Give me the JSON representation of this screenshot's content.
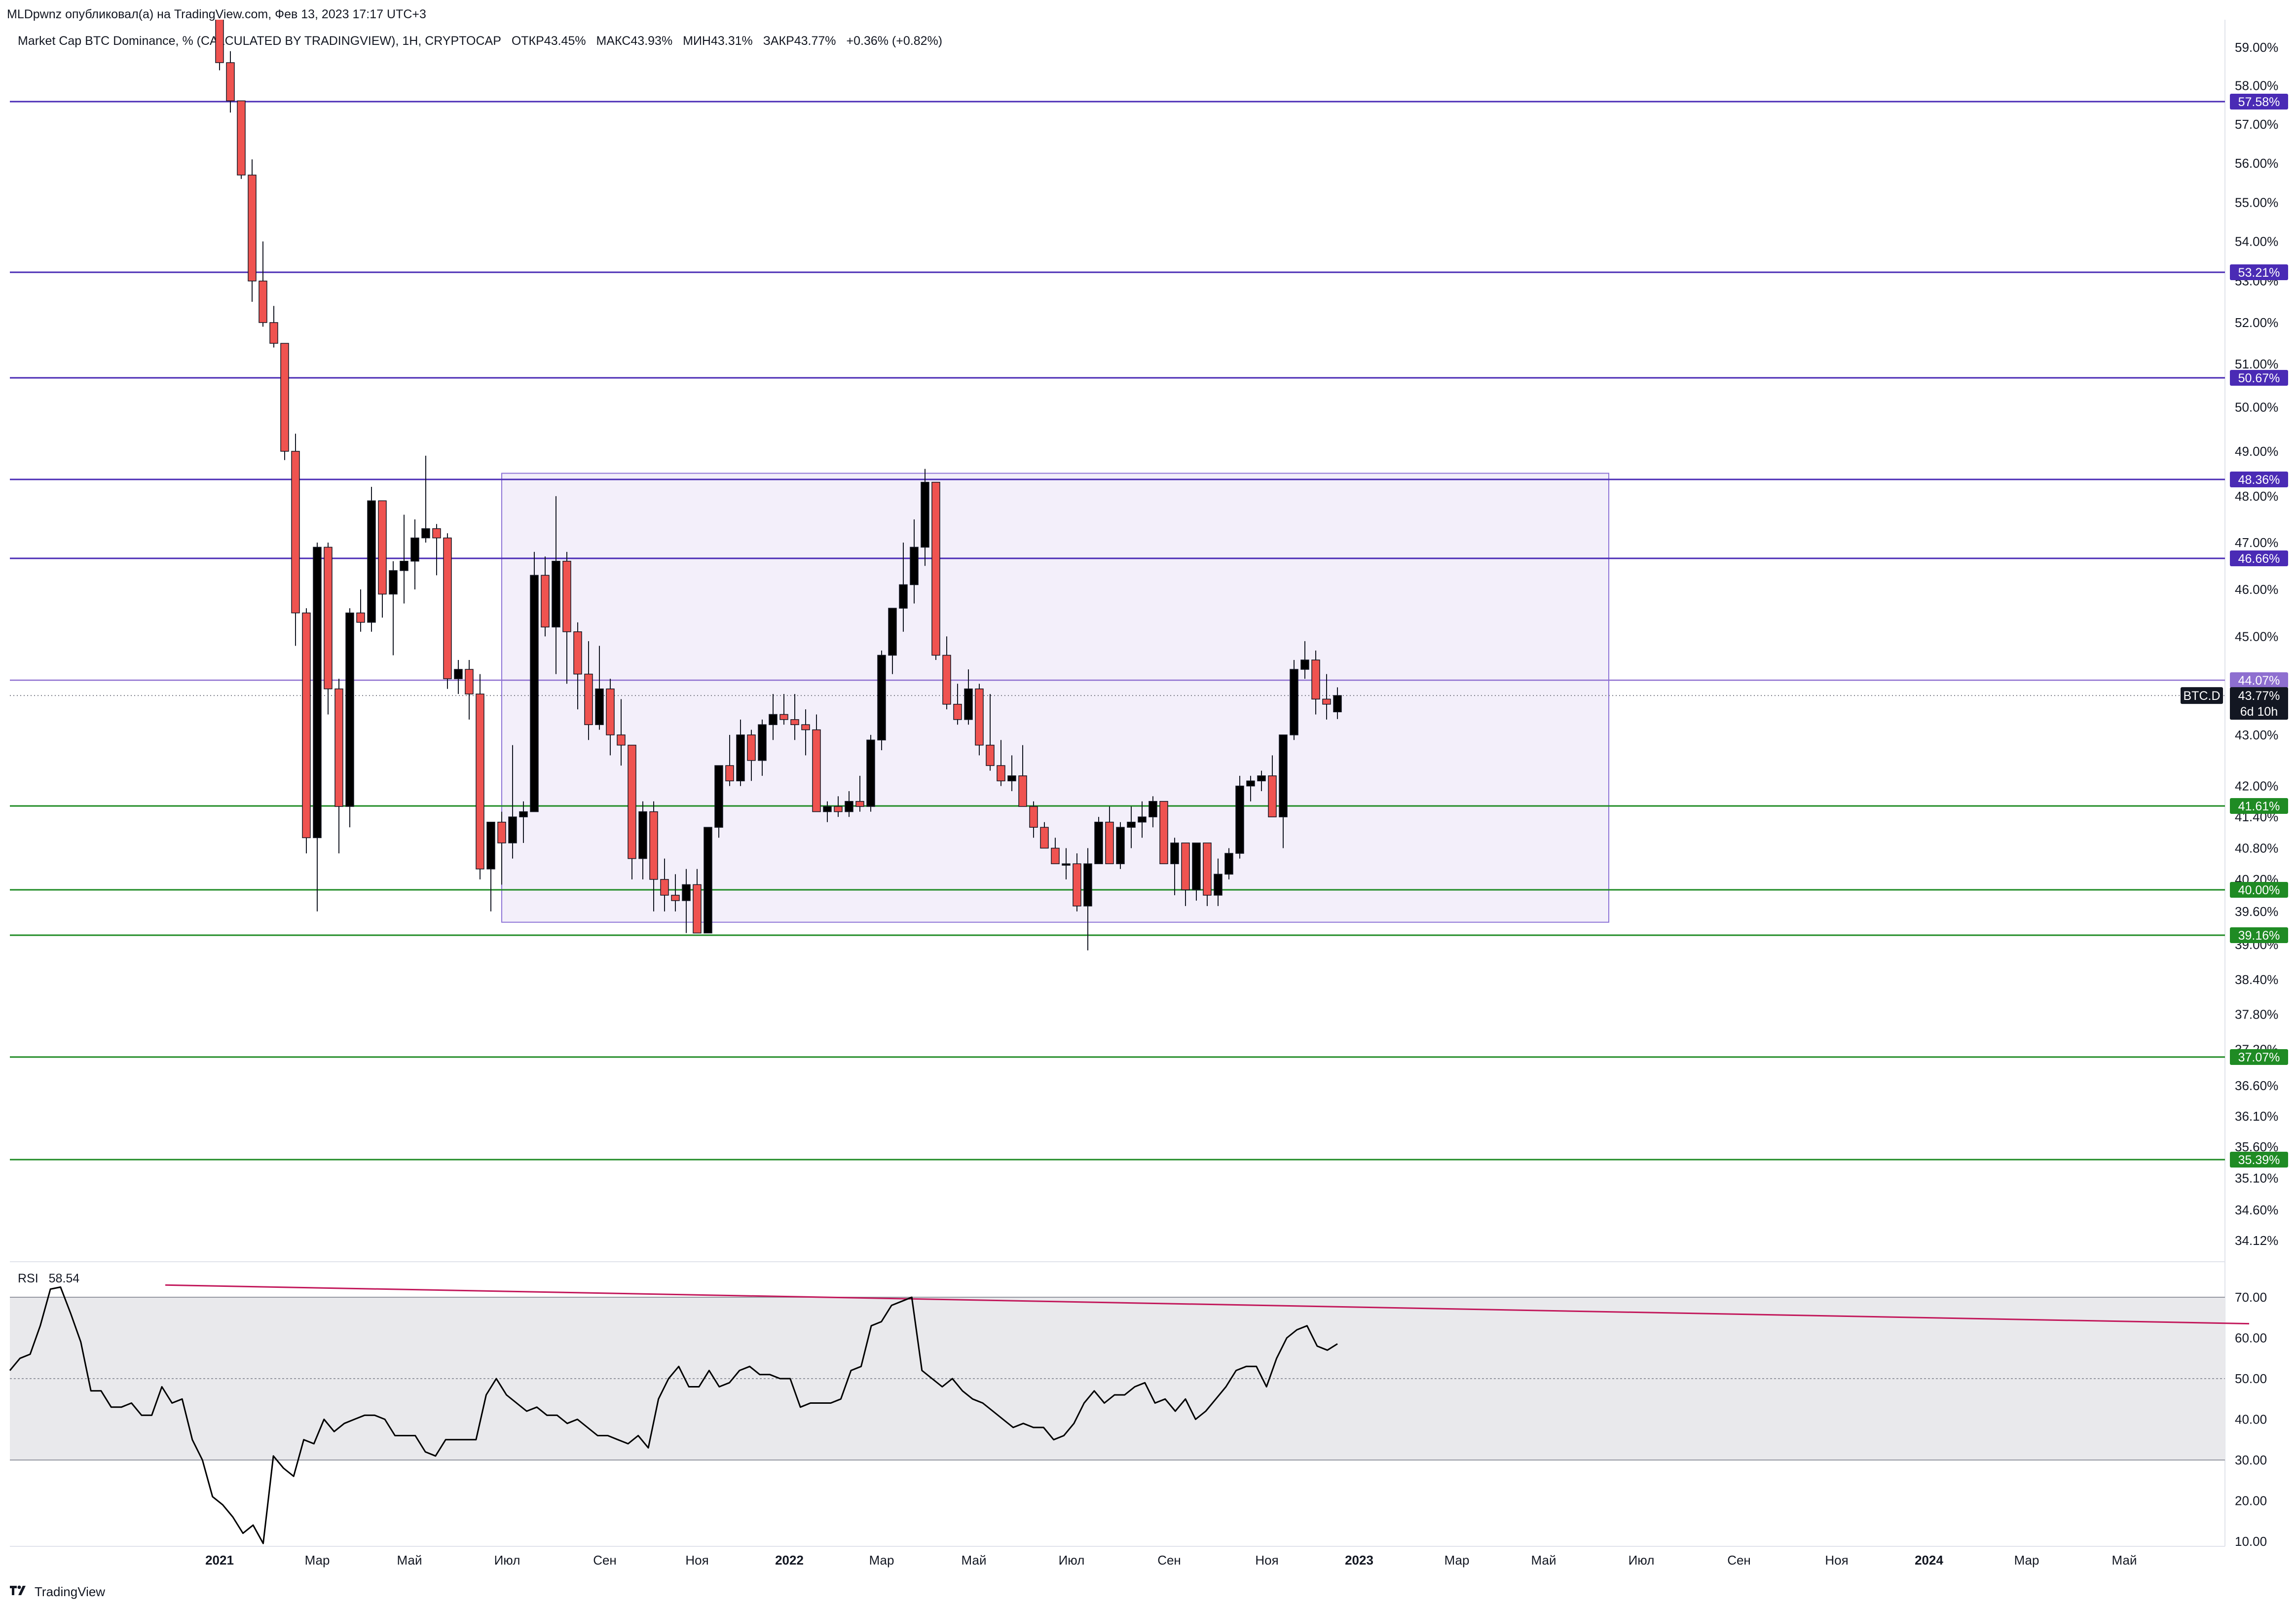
{
  "header": {
    "publisher_line": "MLDpwnz опубликовал(а) на TradingView.com, Фев 13, 2023 17:17 UTC+3"
  },
  "legend": {
    "title": "Market Cap BTC Dominance, % (CALCULATED BY TRADINGVIEW), 1Н, CRYPTOCAP",
    "open": "ОТКР43.45%",
    "high": "МАКС43.93%",
    "low": "МИН43.31%",
    "close": "ЗАКР43.77%",
    "change": "+0.36% (+0.82%)"
  },
  "rsi_panel": {
    "label": "RSI",
    "value": "58.54"
  },
  "footer": {
    "brand": "TradingView"
  },
  "colors": {
    "bull": "#000000",
    "bear": "#ef5350",
    "resistance": "#4a2bb5",
    "support": "#1f8b24",
    "range_box_fill": "#f3effa",
    "range_box_border": "#8e74d6",
    "rsi_band": "#e9e9ec",
    "rsi_trendline": "#c2185b",
    "price_tag": "#131722"
  },
  "chart_data": [
    {
      "type": "candlestick",
      "series_name": "BTC.D",
      "price_tag": {
        "symbol": "BTC.D",
        "value": "43.77%",
        "countdown": "6d 10h",
        "price": 43.77
      },
      "y_ticks": [
        {
          "v": 59.0,
          "l": "59.00%"
        },
        {
          "v": 58.0,
          "l": "58.00%"
        },
        {
          "v": 57.0,
          "l": "57.00%"
        },
        {
          "v": 56.0,
          "l": "56.00%"
        },
        {
          "v": 55.0,
          "l": "55.00%"
        },
        {
          "v": 54.0,
          "l": "54.00%"
        },
        {
          "v": 53.0,
          "l": "53.00%"
        },
        {
          "v": 52.0,
          "l": "52.00%"
        },
        {
          "v": 51.0,
          "l": "51.00%"
        },
        {
          "v": 50.0,
          "l": "50.00%"
        },
        {
          "v": 49.0,
          "l": "49.00%"
        },
        {
          "v": 48.0,
          "l": "48.00%"
        },
        {
          "v": 47.0,
          "l": "47.00%"
        },
        {
          "v": 46.0,
          "l": "46.00%"
        },
        {
          "v": 45.0,
          "l": "45.00%"
        },
        {
          "v": 43.0,
          "l": "43.00%"
        },
        {
          "v": 42.0,
          "l": "42.00%"
        },
        {
          "v": 41.4,
          "l": "41.40%"
        },
        {
          "v": 40.8,
          "l": "40.80%"
        },
        {
          "v": 40.2,
          "l": "40.20%"
        },
        {
          "v": 39.6,
          "l": "39.60%"
        },
        {
          "v": 39.0,
          "l": "39.00%"
        },
        {
          "v": 38.4,
          "l": "38.40%"
        },
        {
          "v": 37.8,
          "l": "37.80%"
        },
        {
          "v": 37.2,
          "l": "37.20%"
        },
        {
          "v": 36.6,
          "l": "36.60%"
        },
        {
          "v": 36.1,
          "l": "36.10%"
        },
        {
          "v": 35.6,
          "l": "35.60%"
        },
        {
          "v": 35.1,
          "l": "35.10%"
        },
        {
          "v": 34.6,
          "l": "34.60%"
        },
        {
          "v": 34.12,
          "l": "34.12%"
        }
      ],
      "levels": [
        {
          "value": 57.58,
          "label": "57.58%",
          "kind": "resistance"
        },
        {
          "value": 53.21,
          "label": "53.21%",
          "kind": "resistance"
        },
        {
          "value": 50.67,
          "label": "50.67%",
          "kind": "resistance"
        },
        {
          "value": 48.36,
          "label": "48.36%",
          "kind": "resistance"
        },
        {
          "value": 46.66,
          "label": "46.66%",
          "kind": "resistance"
        },
        {
          "value": 44.07,
          "label": "44.07%",
          "kind": "resistance_light"
        },
        {
          "value": 41.61,
          "label": "41.61%",
          "kind": "support"
        },
        {
          "value": 40.0,
          "label": "40.00%",
          "kind": "support"
        },
        {
          "value": 39.16,
          "label": "39.16%",
          "kind": "support"
        },
        {
          "value": 37.07,
          "label": "37.07%",
          "kind": "support"
        },
        {
          "value": 35.39,
          "label": "35.39%",
          "kind": "support"
        }
      ],
      "range_box": {
        "x_start": 26,
        "x_end": 128,
        "y_top": 48.5,
        "y_bottom": 39.4
      },
      "x_axis": [
        {
          "x": 0,
          "l": "2021",
          "bold": true
        },
        {
          "x": 9,
          "l": "Мар"
        },
        {
          "x": 17.5,
          "l": "Май"
        },
        {
          "x": 26.5,
          "l": "Июл"
        },
        {
          "x": 35.5,
          "l": "Сен"
        },
        {
          "x": 44,
          "l": "Ноя"
        },
        {
          "x": 52.5,
          "l": "2022",
          "bold": true
        },
        {
          "x": 61,
          "l": "Мар"
        },
        {
          "x": 69.5,
          "l": "Май"
        },
        {
          "x": 78.5,
          "l": "Июл"
        },
        {
          "x": 87.5,
          "l": "Сен"
        },
        {
          "x": 96.5,
          "l": "Ноя"
        },
        {
          "x": 105,
          "l": "2023",
          "bold": true
        },
        {
          "x": 114,
          "l": "Мар"
        },
        {
          "x": 122,
          "l": "Май"
        },
        {
          "x": 131,
          "l": "Июл"
        },
        {
          "x": 140,
          "l": "Сен"
        },
        {
          "x": 149,
          "l": "Ноя"
        },
        {
          "x": 157.5,
          "l": "2024",
          "bold": true
        },
        {
          "x": 166.5,
          "l": "Мар"
        },
        {
          "x": 175.5,
          "l": "Май"
        }
      ],
      "candles": [
        [
          65.2,
          65.4,
          58.4,
          58.6
        ],
        [
          58.6,
          58.9,
          57.3,
          57.6
        ],
        [
          57.6,
          57.6,
          55.6,
          55.7
        ],
        [
          55.7,
          56.1,
          52.5,
          53.0
        ],
        [
          53.0,
          54.0,
          51.9,
          52.0
        ],
        [
          52.0,
          52.4,
          51.4,
          51.5
        ],
        [
          51.5,
          51.5,
          48.8,
          49.0
        ],
        [
          49.0,
          49.4,
          44.8,
          45.5
        ],
        [
          45.5,
          45.6,
          40.7,
          41.0
        ],
        [
          41.0,
          47.0,
          39.6,
          46.9
        ],
        [
          46.9,
          47.0,
          43.4,
          43.9
        ],
        [
          43.9,
          44.1,
          40.7,
          41.6
        ],
        [
          41.6,
          45.6,
          41.2,
          45.5
        ],
        [
          45.5,
          46.0,
          45.1,
          45.3
        ],
        [
          45.3,
          48.2,
          45.1,
          47.9
        ],
        [
          47.9,
          47.9,
          45.4,
          45.9
        ],
        [
          45.9,
          46.6,
          44.6,
          46.4
        ],
        [
          46.4,
          47.6,
          45.7,
          46.6
        ],
        [
          46.6,
          47.5,
          46.0,
          47.1
        ],
        [
          47.1,
          48.9,
          47.0,
          47.3
        ],
        [
          47.3,
          47.4,
          46.3,
          47.1
        ],
        [
          47.1,
          47.2,
          43.9,
          44.1
        ],
        [
          44.1,
          44.5,
          43.8,
          44.3
        ],
        [
          44.3,
          44.5,
          43.3,
          43.8
        ],
        [
          43.8,
          44.2,
          40.2,
          40.4
        ],
        [
          40.4,
          41.2,
          39.6,
          41.3
        ],
        [
          41.3,
          41.5,
          40.1,
          40.9
        ],
        [
          40.9,
          42.8,
          40.6,
          41.4
        ],
        [
          41.4,
          41.7,
          40.9,
          41.5
        ],
        [
          41.5,
          46.8,
          41.5,
          46.3
        ],
        [
          46.3,
          46.7,
          45.0,
          45.2
        ],
        [
          45.2,
          48.0,
          44.2,
          46.6
        ],
        [
          46.6,
          46.8,
          44.0,
          45.1
        ],
        [
          45.1,
          45.3,
          43.5,
          44.2
        ],
        [
          44.2,
          44.9,
          42.9,
          43.2
        ],
        [
          43.2,
          44.8,
          43.1,
          43.9
        ],
        [
          43.9,
          44.1,
          42.6,
          43.0
        ],
        [
          43.0,
          43.7,
          42.4,
          42.8
        ],
        [
          42.8,
          42.8,
          40.2,
          40.6
        ],
        [
          40.6,
          41.7,
          40.2,
          41.5
        ],
        [
          41.5,
          41.7,
          39.6,
          40.2
        ],
        [
          40.2,
          40.6,
          39.6,
          39.9
        ],
        [
          39.9,
          40.3,
          39.6,
          39.8
        ],
        [
          39.8,
          40.4,
          39.2,
          40.1
        ],
        [
          40.1,
          40.4,
          39.2,
          39.2
        ],
        [
          39.2,
          41.1,
          39.2,
          41.2
        ],
        [
          41.2,
          42.3,
          41.0,
          42.4
        ],
        [
          42.4,
          43.0,
          42.0,
          42.1
        ],
        [
          42.1,
          43.3,
          42.0,
          43.0
        ],
        [
          43.0,
          43.1,
          42.1,
          42.5
        ],
        [
          42.5,
          43.3,
          42.2,
          43.2
        ],
        [
          43.2,
          43.8,
          42.9,
          43.4
        ],
        [
          43.4,
          43.8,
          43.2,
          43.3
        ],
        [
          43.3,
          43.8,
          42.9,
          43.2
        ],
        [
          43.2,
          43.5,
          42.6,
          43.1
        ],
        [
          43.1,
          43.4,
          41.5,
          41.5
        ],
        [
          41.5,
          41.7,
          41.3,
          41.6
        ],
        [
          41.6,
          41.8,
          41.4,
          41.5
        ],
        [
          41.5,
          41.9,
          41.4,
          41.7
        ],
        [
          41.7,
          42.2,
          41.5,
          41.6
        ],
        [
          41.6,
          43.0,
          41.5,
          42.9
        ],
        [
          42.9,
          44.7,
          42.7,
          44.6
        ],
        [
          44.6,
          45.6,
          44.2,
          45.6
        ],
        [
          45.6,
          47.0,
          45.1,
          46.1
        ],
        [
          46.1,
          47.5,
          45.7,
          46.9
        ],
        [
          46.9,
          48.6,
          46.5,
          48.3
        ],
        [
          48.3,
          48.3,
          44.5,
          44.6
        ],
        [
          44.6,
          45.0,
          43.5,
          43.6
        ],
        [
          43.6,
          44.0,
          43.2,
          43.3
        ],
        [
          43.3,
          44.3,
          43.2,
          43.9
        ],
        [
          43.9,
          44.0,
          42.6,
          42.8
        ],
        [
          42.8,
          43.8,
          42.3,
          42.4
        ],
        [
          42.4,
          42.9,
          42.0,
          42.1
        ],
        [
          42.1,
          42.6,
          41.9,
          42.2
        ],
        [
          42.2,
          42.8,
          41.6,
          41.6
        ],
        [
          41.6,
          41.7,
          41.0,
          41.2
        ],
        [
          41.2,
          41.3,
          40.9,
          40.8
        ],
        [
          40.8,
          41.0,
          40.5,
          40.5
        ],
        [
          40.5,
          40.8,
          40.2,
          40.5
        ],
        [
          40.5,
          40.7,
          39.6,
          39.7
        ],
        [
          39.7,
          40.8,
          38.9,
          40.5
        ],
        [
          40.5,
          41.4,
          40.5,
          41.3
        ],
        [
          41.3,
          41.6,
          40.5,
          40.5
        ],
        [
          40.5,
          41.3,
          40.4,
          41.2
        ],
        [
          41.2,
          41.6,
          40.8,
          41.3
        ],
        [
          41.3,
          41.7,
          41.0,
          41.4
        ],
        [
          41.4,
          41.8,
          41.2,
          41.7
        ],
        [
          41.7,
          41.7,
          40.5,
          40.5
        ],
        [
          40.5,
          41.0,
          39.9,
          40.9
        ],
        [
          40.9,
          40.9,
          39.7,
          40.0
        ],
        [
          40.0,
          40.9,
          39.8,
          40.9
        ],
        [
          40.9,
          40.9,
          39.7,
          39.9
        ],
        [
          39.9,
          40.6,
          39.7,
          40.3
        ],
        [
          40.3,
          40.8,
          40.2,
          40.7
        ],
        [
          40.7,
          42.2,
          40.6,
          42.0
        ],
        [
          42.0,
          42.2,
          41.7,
          42.1
        ],
        [
          42.1,
          42.3,
          41.9,
          42.2
        ],
        [
          42.2,
          42.6,
          41.4,
          41.4
        ],
        [
          41.4,
          43.0,
          40.8,
          43.0
        ],
        [
          43.0,
          44.5,
          42.9,
          44.3
        ],
        [
          44.3,
          44.9,
          44.1,
          44.5
        ],
        [
          44.5,
          44.7,
          43.4,
          43.7
        ],
        [
          43.7,
          44.2,
          43.3,
          43.6
        ],
        [
          43.45,
          43.93,
          43.31,
          43.77
        ]
      ]
    },
    {
      "type": "line",
      "series_name": "RSI",
      "y_ticks": [
        {
          "v": 70,
          "l": "70.00"
        },
        {
          "v": 60,
          "l": "60.00"
        },
        {
          "v": 50,
          "l": "50.00"
        },
        {
          "v": 40,
          "l": "40.00"
        },
        {
          "v": 30,
          "l": "30.00"
        },
        {
          "v": 20,
          "l": "20.00"
        },
        {
          "v": 10,
          "l": "10.00"
        }
      ],
      "band": [
        30,
        70
      ],
      "trendline": {
        "x0": -5,
        "y0": 73.0,
        "x1": 187,
        "y1": 63.5
      },
      "values": [
        52,
        55,
        56,
        63,
        72,
        72.5,
        66,
        59,
        47,
        47,
        43,
        43,
        44,
        41,
        41,
        48,
        44,
        45,
        35,
        30,
        21,
        19,
        16,
        12,
        14,
        9.5,
        31,
        28,
        26,
        35,
        34,
        40,
        37,
        39,
        40,
        41,
        41,
        40,
        36,
        36,
        36,
        32,
        31,
        35,
        35,
        35,
        35,
        46,
        50,
        46,
        44,
        42,
        43,
        41,
        41,
        39,
        40,
        38,
        36,
        36,
        35,
        34,
        36,
        33,
        45,
        50,
        53,
        48,
        48,
        52,
        48,
        49,
        52,
        53,
        51,
        51,
        50,
        50,
        43,
        44,
        44,
        44,
        45,
        52,
        53,
        63,
        64,
        68,
        69,
        70,
        52,
        50,
        48,
        50,
        47,
        45,
        44,
        42,
        40,
        38,
        39,
        38,
        38,
        35,
        36,
        39,
        44,
        47,
        44,
        46,
        46,
        48,
        49,
        44,
        45,
        42,
        45,
        40,
        42,
        45,
        48,
        52,
        53,
        53,
        48,
        55,
        60,
        62,
        63,
        58,
        57,
        58.54
      ]
    }
  ]
}
